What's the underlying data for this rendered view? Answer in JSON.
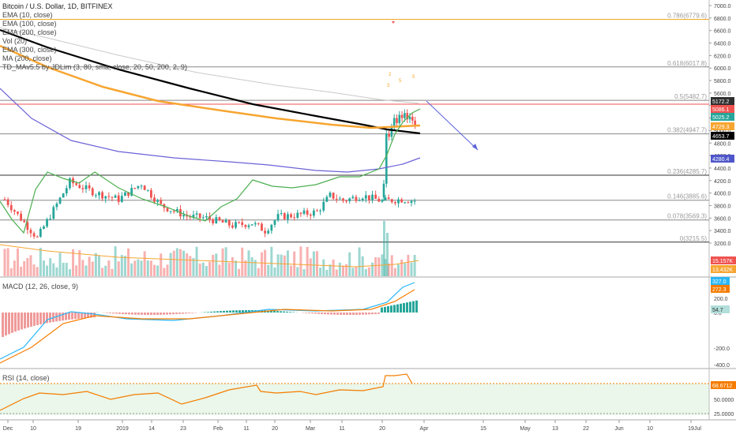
{
  "header": {
    "title": "Bitcoin / U.S. Dollar, 1D, BITFINEX",
    "indicators": [
      "EMA (10, close)",
      "EMA (100, close)",
      "EMA (200, close)",
      "Vol (20)",
      "EMA (300, close)",
      "MA (200, close)",
      "TD_MAv5.5 by JDLim (3, 80, sma, close, 20, 50, 200, 2, 9)"
    ]
  },
  "panes": {
    "macd_label": "MACD (12, 26, close, 9)",
    "rsi_label": "RSI (14, close)"
  },
  "colors": {
    "up": "#26a69a",
    "down": "#ef5350",
    "ema10": "#4caf50",
    "ema100": "#000000",
    "ema200": "#f7a531",
    "ma200": "#6b62d6",
    "ema300": "#c9c9c9",
    "fib_orange": "#f5a623",
    "fib_gray": "#888888",
    "fib_red": "#ef5350",
    "arrow": "#5b63d8",
    "macd": "#29b6f6",
    "signal": "#f57c00",
    "rsi": "#f57c00"
  },
  "chart_data": {
    "type": "line",
    "price_axis": {
      "ticks": [
        "7000.0",
        "6800.0",
        "6600.0",
        "6400.0",
        "6200.0",
        "6000.0",
        "5800.0",
        "5600.0",
        "5400.0",
        "5200.0",
        "5000.0",
        "4800.0",
        "4600.0",
        "4400.0",
        "4200.0",
        "4000.0",
        "3800.0",
        "3600.0",
        "3400.0",
        "3200.0"
      ],
      "range": [
        3150,
        7050
      ]
    },
    "time_axis": {
      "labels": [
        "Dec",
        "10",
        "19",
        "2019",
        "14",
        "23",
        "Feb",
        "11",
        "20",
        "Mar",
        "11",
        "20",
        "Apr",
        "15",
        "May",
        "13",
        "22",
        "Jun",
        "10",
        "19",
        "Jul"
      ]
    },
    "fib_levels": [
      {
        "label": "0.786(6779.6)",
        "value": 6779.6
      },
      {
        "label": "0.618(6017.8)",
        "value": 6017.8
      },
      {
        "label": "0.5(5482.7)",
        "value": 5482.7
      },
      {
        "label": "0.382(4947.7)",
        "value": 4947.7
      },
      {
        "label": "0.236(4285.7)",
        "value": 4285.7
      },
      {
        "label": "0.146(3885.6)",
        "value": 3885.6
      },
      {
        "label": "0.078(3569.3)",
        "value": 3569.3
      },
      {
        "label": "0(3215.5)",
        "value": 3215.5
      }
    ],
    "price_tags": [
      {
        "label": "5172.2",
        "color": "#2f2f2f"
      },
      {
        "label": "5086.1",
        "color": "#ef5350"
      },
      {
        "label": "5025.2",
        "color": "#26a69a"
      },
      {
        "label": "4729.3",
        "color": "#f7a531"
      },
      {
        "label": "4653.7",
        "color": "#000000"
      },
      {
        "label": "4280.4",
        "color": "#4e57c9"
      }
    ],
    "volume_tags": [
      {
        "label": "15.157K",
        "color": "#ef5350"
      },
      {
        "label": "13.432K",
        "color": "#f7a531"
      }
    ],
    "macd_axis": {
      "ticks": [
        "200.0",
        "0.0",
        "-200.0",
        "-400.0",
        "-600.0"
      ]
    },
    "macd_tags": [
      {
        "label": "327.0",
        "color": "#29b6f6"
      },
      {
        "label": "272.3",
        "color": "#f57c00"
      },
      {
        "label": "54.7",
        "color": "#b2dfdb"
      }
    ],
    "rsi_axis": {
      "ticks": [
        "75.0000",
        "50.0000",
        "25.0000"
      ]
    },
    "rsi_tag": {
      "label": "68.6712",
      "color": "#f57c00"
    },
    "td_markers": [
      "2",
      "3",
      "5",
      "5"
    ]
  }
}
